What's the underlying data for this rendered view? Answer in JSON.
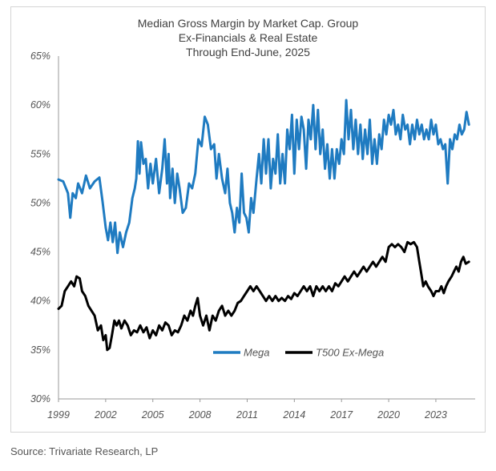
{
  "chart_data": {
    "type": "line",
    "title": "Median Gross Margin by Market Cap. Group",
    "subtitle": [
      "Ex-Financials & Real Estate",
      "Through End-June, 2025"
    ],
    "xlabel": "",
    "ylabel": "",
    "x_ticks": [
      "1999",
      "2002",
      "2005",
      "2008",
      "2011",
      "2014",
      "2017",
      "2020",
      "2023"
    ],
    "y_ticks": [
      "65%",
      "60%",
      "55%",
      "50%",
      "45%",
      "40%",
      "35%",
      "30%"
    ],
    "xlim": [
      1999.0,
      2025.5
    ],
    "ylim": [
      30,
      65
    ],
    "grid": false,
    "legend": "inside-bottom-center",
    "series": [
      {
        "name": "Mega",
        "color": "#1f7bc1",
        "points": [
          [
            1999.0,
            52.4
          ],
          [
            1999.3,
            52.2
          ],
          [
            1999.6,
            51.0
          ],
          [
            1999.75,
            48.5
          ],
          [
            1999.9,
            51.0
          ],
          [
            2000.1,
            50.5
          ],
          [
            2000.25,
            52.0
          ],
          [
            2000.5,
            51.0
          ],
          [
            2000.75,
            52.8
          ],
          [
            2001.0,
            51.5
          ],
          [
            2001.3,
            52.2
          ],
          [
            2001.6,
            52.6
          ],
          [
            2001.8,
            50.2
          ],
          [
            2002.0,
            47.5
          ],
          [
            2002.15,
            46.2
          ],
          [
            2002.3,
            48.0
          ],
          [
            2002.45,
            46.0
          ],
          [
            2002.6,
            48.0
          ],
          [
            2002.75,
            44.9
          ],
          [
            2002.9,
            47.0
          ],
          [
            2003.1,
            45.5
          ],
          [
            2003.3,
            47.0
          ],
          [
            2003.5,
            48.0
          ],
          [
            2003.7,
            50.5
          ],
          [
            2003.85,
            51.5
          ],
          [
            2003.95,
            52.5
          ],
          [
            2004.05,
            56.3
          ],
          [
            2004.15,
            53.0
          ],
          [
            2004.25,
            56.2
          ],
          [
            2004.4,
            54.0
          ],
          [
            2004.55,
            54.5
          ],
          [
            2004.7,
            51.5
          ],
          [
            2004.85,
            54.0
          ],
          [
            2005.0,
            52.0
          ],
          [
            2005.2,
            54.5
          ],
          [
            2005.4,
            51.0
          ],
          [
            2005.6,
            53.5
          ],
          [
            2005.75,
            56.5
          ],
          [
            2005.9,
            52.0
          ],
          [
            2006.0,
            55.0
          ],
          [
            2006.1,
            50.5
          ],
          [
            2006.25,
            53.5
          ],
          [
            2006.4,
            50.0
          ],
          [
            2006.55,
            53.0
          ],
          [
            2006.7,
            51.5
          ],
          [
            2006.9,
            49.0
          ],
          [
            2007.1,
            49.5
          ],
          [
            2007.3,
            52.0
          ],
          [
            2007.5,
            51.5
          ],
          [
            2007.7,
            53.0
          ],
          [
            2007.9,
            56.5
          ],
          [
            2008.1,
            55.8
          ],
          [
            2008.3,
            58.8
          ],
          [
            2008.5,
            58.0
          ],
          [
            2008.7,
            55.5
          ],
          [
            2008.9,
            56.0
          ],
          [
            2009.05,
            52.5
          ],
          [
            2009.2,
            55.0
          ],
          [
            2009.4,
            52.5
          ],
          [
            2009.6,
            51.0
          ],
          [
            2009.75,
            53.5
          ],
          [
            2009.9,
            50.0
          ],
          [
            2010.05,
            49.0
          ],
          [
            2010.2,
            47.0
          ],
          [
            2010.35,
            49.5
          ],
          [
            2010.5,
            48.0
          ],
          [
            2010.65,
            53.0
          ],
          [
            2010.8,
            49.0
          ],
          [
            2010.95,
            48.5
          ],
          [
            2011.1,
            47.0
          ],
          [
            2011.25,
            50.5
          ],
          [
            2011.4,
            49.0
          ],
          [
            2011.6,
            52.5
          ],
          [
            2011.75,
            55.0
          ],
          [
            2011.9,
            52.0
          ],
          [
            2012.05,
            56.5
          ],
          [
            2012.2,
            53.0
          ],
          [
            2012.35,
            56.5
          ],
          [
            2012.5,
            51.5
          ],
          [
            2012.65,
            54.5
          ],
          [
            2012.8,
            53.0
          ],
          [
            2012.95,
            57.0
          ],
          [
            2013.1,
            52.0
          ],
          [
            2013.25,
            55.0
          ],
          [
            2013.4,
            52.0
          ],
          [
            2013.55,
            57.5
          ],
          [
            2013.7,
            55.5
          ],
          [
            2013.85,
            59.0
          ],
          [
            2014.0,
            53.0
          ],
          [
            2014.15,
            58.5
          ],
          [
            2014.3,
            55.5
          ],
          [
            2014.45,
            58.8
          ],
          [
            2014.6,
            57.5
          ],
          [
            2014.75,
            53.5
          ],
          [
            2014.9,
            58.5
          ],
          [
            2015.05,
            56.5
          ],
          [
            2015.2,
            60.0
          ],
          [
            2015.35,
            55.5
          ],
          [
            2015.5,
            59.5
          ],
          [
            2015.65,
            55.0
          ],
          [
            2015.8,
            57.5
          ],
          [
            2015.95,
            53.5
          ],
          [
            2016.1,
            56.0
          ],
          [
            2016.25,
            52.5
          ],
          [
            2016.4,
            55.5
          ],
          [
            2016.55,
            52.5
          ],
          [
            2016.7,
            55.5
          ],
          [
            2016.85,
            54.0
          ],
          [
            2017.0,
            56.5
          ],
          [
            2017.15,
            55.0
          ],
          [
            2017.3,
            60.5
          ],
          [
            2017.45,
            56.5
          ],
          [
            2017.6,
            59.5
          ],
          [
            2017.75,
            55.5
          ],
          [
            2017.9,
            58.5
          ],
          [
            2018.05,
            55.0
          ],
          [
            2018.2,
            58.0
          ],
          [
            2018.35,
            54.5
          ],
          [
            2018.5,
            57.5
          ],
          [
            2018.65,
            55.0
          ],
          [
            2018.8,
            58.5
          ],
          [
            2018.95,
            54.0
          ],
          [
            2019.1,
            56.5
          ],
          [
            2019.25,
            54.0
          ],
          [
            2019.4,
            57.0
          ],
          [
            2019.55,
            55.5
          ],
          [
            2019.7,
            58.5
          ],
          [
            2019.85,
            57.0
          ],
          [
            2020.0,
            59.0
          ],
          [
            2020.15,
            58.0
          ],
          [
            2020.3,
            59.5
          ],
          [
            2020.45,
            57.0
          ],
          [
            2020.6,
            58.0
          ],
          [
            2020.75,
            56.5
          ],
          [
            2020.9,
            59.0
          ],
          [
            2021.05,
            57.5
          ],
          [
            2021.2,
            58.0
          ],
          [
            2021.35,
            56.0
          ],
          [
            2021.5,
            58.0
          ],
          [
            2021.65,
            56.5
          ],
          [
            2021.8,
            58.5
          ],
          [
            2021.95,
            57.0
          ],
          [
            2022.1,
            58.0
          ],
          [
            2022.25,
            56.5
          ],
          [
            2022.4,
            57.5
          ],
          [
            2022.55,
            56.5
          ],
          [
            2022.7,
            58.5
          ],
          [
            2022.85,
            57.0
          ],
          [
            2023.0,
            58.0
          ],
          [
            2023.15,
            56.0
          ],
          [
            2023.3,
            56.5
          ],
          [
            2023.45,
            55.5
          ],
          [
            2023.6,
            56.0
          ],
          [
            2023.75,
            52.0
          ],
          [
            2023.9,
            56.5
          ],
          [
            2024.05,
            55.5
          ],
          [
            2024.2,
            57.0
          ],
          [
            2024.35,
            56.5
          ],
          [
            2024.5,
            58.0
          ],
          [
            2024.65,
            57.0
          ],
          [
            2024.8,
            57.5
          ],
          [
            2024.95,
            59.3
          ],
          [
            2025.1,
            58.0
          ]
        ]
      },
      {
        "name": "T500 Ex-Mega",
        "color": "#000000",
        "points": [
          [
            1999.0,
            39.2
          ],
          [
            1999.2,
            39.5
          ],
          [
            1999.4,
            41.0
          ],
          [
            1999.6,
            41.5
          ],
          [
            1999.8,
            42.0
          ],
          [
            2000.0,
            41.5
          ],
          [
            2000.15,
            42.5
          ],
          [
            2000.35,
            42.3
          ],
          [
            2000.5,
            41.0
          ],
          [
            2000.7,
            40.5
          ],
          [
            2000.9,
            39.5
          ],
          [
            2001.1,
            39.0
          ],
          [
            2001.3,
            38.5
          ],
          [
            2001.5,
            37.0
          ],
          [
            2001.7,
            37.5
          ],
          [
            2001.85,
            36.0
          ],
          [
            2002.0,
            36.5
          ],
          [
            2002.1,
            35.0
          ],
          [
            2002.25,
            35.2
          ],
          [
            2002.4,
            36.5
          ],
          [
            2002.55,
            38.0
          ],
          [
            2002.7,
            37.5
          ],
          [
            2002.85,
            38.0
          ],
          [
            2003.0,
            37.2
          ],
          [
            2003.2,
            38.0
          ],
          [
            2003.4,
            37.5
          ],
          [
            2003.6,
            36.5
          ],
          [
            2003.8,
            37.0
          ],
          [
            2004.0,
            36.8
          ],
          [
            2004.2,
            37.5
          ],
          [
            2004.4,
            36.8
          ],
          [
            2004.6,
            37.3
          ],
          [
            2004.8,
            36.2
          ],
          [
            2005.0,
            37.0
          ],
          [
            2005.2,
            36.5
          ],
          [
            2005.4,
            37.5
          ],
          [
            2005.6,
            37.0
          ],
          [
            2005.8,
            37.8
          ],
          [
            2006.0,
            37.5
          ],
          [
            2006.2,
            36.5
          ],
          [
            2006.4,
            37.0
          ],
          [
            2006.6,
            36.8
          ],
          [
            2006.8,
            37.5
          ],
          [
            2007.0,
            38.5
          ],
          [
            2007.2,
            38.0
          ],
          [
            2007.4,
            39.0
          ],
          [
            2007.55,
            38.5
          ],
          [
            2007.7,
            39.5
          ],
          [
            2007.85,
            40.3
          ],
          [
            2008.0,
            38.5
          ],
          [
            2008.2,
            37.5
          ],
          [
            2008.4,
            38.5
          ],
          [
            2008.6,
            37.0
          ],
          [
            2008.8,
            38.5
          ],
          [
            2009.0,
            38.0
          ],
          [
            2009.2,
            39.0
          ],
          [
            2009.4,
            39.5
          ],
          [
            2009.6,
            38.5
          ],
          [
            2009.8,
            39.0
          ],
          [
            2010.0,
            38.5
          ],
          [
            2010.2,
            39.0
          ],
          [
            2010.4,
            39.8
          ],
          [
            2010.6,
            40.0
          ],
          [
            2010.8,
            40.5
          ],
          [
            2011.0,
            41.0
          ],
          [
            2011.2,
            41.5
          ],
          [
            2011.4,
            41.0
          ],
          [
            2011.6,
            41.5
          ],
          [
            2011.8,
            41.0
          ],
          [
            2012.0,
            40.5
          ],
          [
            2012.2,
            40.0
          ],
          [
            2012.4,
            40.5
          ],
          [
            2012.6,
            40.0
          ],
          [
            2012.8,
            40.5
          ],
          [
            2013.0,
            40.0
          ],
          [
            2013.2,
            40.3
          ],
          [
            2013.4,
            40.0
          ],
          [
            2013.6,
            40.5
          ],
          [
            2013.8,
            40.2
          ],
          [
            2014.0,
            40.8
          ],
          [
            2014.2,
            40.5
          ],
          [
            2014.4,
            41.0
          ],
          [
            2014.6,
            41.5
          ],
          [
            2014.8,
            41.0
          ],
          [
            2015.0,
            41.5
          ],
          [
            2015.2,
            40.5
          ],
          [
            2015.4,
            41.5
          ],
          [
            2015.6,
            41.0
          ],
          [
            2015.8,
            41.5
          ],
          [
            2016.0,
            41.0
          ],
          [
            2016.2,
            41.5
          ],
          [
            2016.4,
            41.0
          ],
          [
            2016.6,
            41.8
          ],
          [
            2016.8,
            41.5
          ],
          [
            2017.0,
            42.0
          ],
          [
            2017.2,
            42.5
          ],
          [
            2017.4,
            42.0
          ],
          [
            2017.6,
            42.5
          ],
          [
            2017.8,
            43.0
          ],
          [
            2018.0,
            42.5
          ],
          [
            2018.2,
            43.0
          ],
          [
            2018.4,
            43.5
          ],
          [
            2018.6,
            43.0
          ],
          [
            2018.8,
            43.5
          ],
          [
            2019.0,
            44.0
          ],
          [
            2019.2,
            43.5
          ],
          [
            2019.4,
            44.0
          ],
          [
            2019.6,
            44.5
          ],
          [
            2019.8,
            44.0
          ],
          [
            2020.0,
            45.5
          ],
          [
            2020.2,
            45.8
          ],
          [
            2020.4,
            45.5
          ],
          [
            2020.6,
            45.8
          ],
          [
            2020.8,
            45.5
          ],
          [
            2021.0,
            45.0
          ],
          [
            2021.2,
            46.0
          ],
          [
            2021.4,
            45.8
          ],
          [
            2021.6,
            46.0
          ],
          [
            2021.8,
            45.5
          ],
          [
            2021.95,
            44.0
          ],
          [
            2022.1,
            42.5
          ],
          [
            2022.2,
            41.5
          ],
          [
            2022.35,
            42.0
          ],
          [
            2022.5,
            41.5
          ],
          [
            2022.7,
            41.0
          ],
          [
            2022.85,
            40.5
          ],
          [
            2023.0,
            41.0
          ],
          [
            2023.2,
            41.0
          ],
          [
            2023.35,
            41.5
          ],
          [
            2023.5,
            40.8
          ],
          [
            2023.65,
            41.5
          ],
          [
            2023.8,
            42.0
          ],
          [
            2024.0,
            42.5
          ],
          [
            2024.15,
            43.0
          ],
          [
            2024.3,
            43.5
          ],
          [
            2024.45,
            43.0
          ],
          [
            2024.6,
            44.0
          ],
          [
            2024.75,
            44.5
          ],
          [
            2024.9,
            43.8
          ],
          [
            2025.1,
            44.0
          ]
        ]
      }
    ]
  },
  "source": "Source: Trivariate Research, LP"
}
